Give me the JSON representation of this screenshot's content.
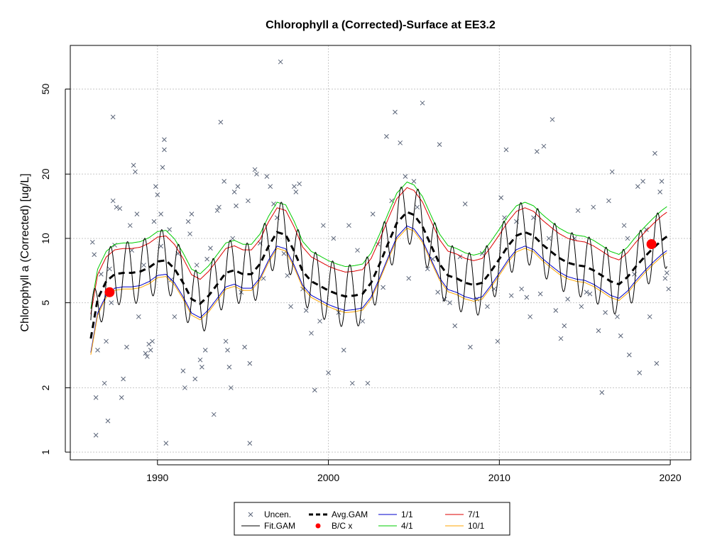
{
  "chart_data": {
    "type": "line",
    "title": "Chlorophyll a (Corrected)-Surface at EE3.2",
    "xlabel": "",
    "ylabel": "Chlorophyll a (Corrected) [ug/L]",
    "ylog": true,
    "xlim": [
      1984.9,
      2021.2
    ],
    "ylim": [
      0.92,
      80
    ],
    "grid": true,
    "x_ticks": [
      1990,
      2000,
      2010,
      2020
    ],
    "y_ticks": [
      1,
      2,
      5,
      10,
      20,
      50
    ],
    "legend_position": "bottom",
    "legend": [
      {
        "label": "Uncen.",
        "kind": "cross",
        "color": "#5a6478"
      },
      {
        "label": "Avg.GAM",
        "kind": "dash",
        "color": "#000000"
      },
      {
        "label": "1/1",
        "kind": "line",
        "color": "#0000cc"
      },
      {
        "label": "7/1",
        "kind": "line",
        "color": "#dd0000"
      },
      {
        "label": "Fit.GAM",
        "kind": "line",
        "color": "#000000"
      },
      {
        "label": "B/C x",
        "kind": "dot",
        "color": "#ff0000"
      },
      {
        "label": "4/1",
        "kind": "line",
        "color": "#00cc00"
      },
      {
        "label": "10/1",
        "kind": "line",
        "color": "#ffa500"
      }
    ],
    "avg_gam": [
      [
        1986.1,
        3.4
      ],
      [
        1986.5,
        5.2
      ],
      [
        1987.0,
        6.3
      ],
      [
        1987.5,
        6.8
      ],
      [
        1988.0,
        6.9
      ],
      [
        1988.5,
        6.9
      ],
      [
        1989.0,
        7.0
      ],
      [
        1989.5,
        7.3
      ],
      [
        1990.0,
        7.8
      ],
      [
        1990.5,
        7.9
      ],
      [
        1991.0,
        7.2
      ],
      [
        1991.5,
        6.2
      ],
      [
        1992.0,
        5.2
      ],
      [
        1992.5,
        4.95
      ],
      [
        1993.0,
        5.4
      ],
      [
        1993.5,
        6.1
      ],
      [
        1994.0,
        6.9
      ],
      [
        1994.5,
        7.1
      ],
      [
        1995.0,
        6.8
      ],
      [
        1995.5,
        6.8
      ],
      [
        1996.0,
        7.6
      ],
      [
        1996.5,
        9.2
      ],
      [
        1997.0,
        10.7
      ],
      [
        1997.5,
        10.4
      ],
      [
        1998.0,
        8.7
      ],
      [
        1998.5,
        7.0
      ],
      [
        1999.0,
        6.3
      ],
      [
        1999.5,
        6.0
      ],
      [
        2000.0,
        5.7
      ],
      [
        2000.5,
        5.5
      ],
      [
        2001.0,
        5.35
      ],
      [
        2001.5,
        5.4
      ],
      [
        2002.0,
        5.5
      ],
      [
        2002.5,
        6.2
      ],
      [
        2003.0,
        7.6
      ],
      [
        2003.5,
        9.5
      ],
      [
        2004.0,
        11.8
      ],
      [
        2004.6,
        13.3
      ],
      [
        2005.0,
        12.9
      ],
      [
        2005.5,
        11.4
      ],
      [
        2006.0,
        9.3
      ],
      [
        2006.5,
        7.6
      ],
      [
        2007.0,
        6.7
      ],
      [
        2007.5,
        6.5
      ],
      [
        2008.0,
        6.2
      ],
      [
        2008.5,
        6.05
      ],
      [
        2009.0,
        6.2
      ],
      [
        2009.5,
        7.0
      ],
      [
        2010.0,
        8.0
      ],
      [
        2010.5,
        9.2
      ],
      [
        2011.0,
        10.3
      ],
      [
        2011.5,
        10.7
      ],
      [
        2012.0,
        10.3
      ],
      [
        2012.5,
        9.4
      ],
      [
        2013.0,
        8.7
      ],
      [
        2013.5,
        8.1
      ],
      [
        2014.0,
        7.7
      ],
      [
        2014.5,
        7.5
      ],
      [
        2015.0,
        7.4
      ],
      [
        2015.5,
        7.1
      ],
      [
        2016.0,
        6.7
      ],
      [
        2016.5,
        6.3
      ],
      [
        2017.0,
        6.1
      ],
      [
        2017.5,
        6.6
      ],
      [
        2018.0,
        7.4
      ],
      [
        2018.5,
        8.2
      ],
      [
        2019.0,
        9.0
      ],
      [
        2019.5,
        9.8
      ],
      [
        2019.8,
        10.2
      ]
    ],
    "curves": [
      {
        "name": "1/1",
        "color": "#0000cc",
        "factor": 0.86
      },
      {
        "name": "4/1",
        "color": "#00cc00",
        "factor": 1.38
      },
      {
        "name": "7/1",
        "color": "#dd0000",
        "factor": 1.3
      },
      {
        "name": "10/1",
        "color": "#ffa500",
        "factor": 0.84
      }
    ],
    "fit_gam_amplitude": 1.4,
    "bc_points": [
      [
        1987.2,
        5.6
      ],
      [
        2018.9,
        9.4
      ]
    ],
    "uncensored_points": [
      [
        1986.2,
        9.6
      ],
      [
        1986.3,
        8.4
      ],
      [
        1986.4,
        1.8
      ],
      [
        1986.4,
        1.2
      ],
      [
        1986.5,
        3.0
      ],
      [
        1986.7,
        6.8
      ],
      [
        1986.9,
        2.1
      ],
      [
        1987.0,
        3.3
      ],
      [
        1987.1,
        1.4
      ],
      [
        1987.2,
        7.2
      ],
      [
        1987.3,
        5.0
      ],
      [
        1987.4,
        37.0
      ],
      [
        1987.4,
        15.0
      ],
      [
        1987.5,
        9.3
      ],
      [
        1987.6,
        14.0
      ],
      [
        1987.8,
        13.8
      ],
      [
        1987.9,
        1.8
      ],
      [
        1988.0,
        2.2
      ],
      [
        1988.2,
        3.1
      ],
      [
        1988.4,
        11.5
      ],
      [
        1988.5,
        8.8
      ],
      [
        1988.6,
        22.0
      ],
      [
        1988.7,
        20.5
      ],
      [
        1988.8,
        13.0
      ],
      [
        1988.9,
        4.3
      ],
      [
        1989.2,
        7.5
      ],
      [
        1989.3,
        2.9
      ],
      [
        1989.4,
        2.8
      ],
      [
        1989.5,
        3.2
      ],
      [
        1989.6,
        3.0
      ],
      [
        1989.7,
        3.3
      ],
      [
        1989.8,
        12.0
      ],
      [
        1989.9,
        17.5
      ],
      [
        1990.0,
        16.0
      ],
      [
        1990.2,
        13.0
      ],
      [
        1990.2,
        9.2
      ],
      [
        1990.3,
        21.5
      ],
      [
        1990.4,
        26.0
      ],
      [
        1990.4,
        29.0
      ],
      [
        1990.5,
        1.1
      ],
      [
        1990.7,
        11.0
      ],
      [
        1990.8,
        6.4
      ],
      [
        1991.0,
        4.3
      ],
      [
        1991.2,
        8.5
      ],
      [
        1991.5,
        2.4
      ],
      [
        1991.6,
        2.0
      ],
      [
        1991.8,
        12.0
      ],
      [
        1991.9,
        10.5
      ],
      [
        1992.0,
        13.0
      ],
      [
        1992.2,
        2.2
      ],
      [
        1992.3,
        7.5
      ],
      [
        1992.5,
        2.7
      ],
      [
        1992.6,
        2.5
      ],
      [
        1992.8,
        3.0
      ],
      [
        1992.9,
        8.0
      ],
      [
        1993.1,
        9.0
      ],
      [
        1993.3,
        1.5
      ],
      [
        1993.5,
        13.5
      ],
      [
        1993.6,
        14.0
      ],
      [
        1993.7,
        35.0
      ],
      [
        1993.9,
        18.5
      ],
      [
        1994.0,
        3.3
      ],
      [
        1994.1,
        3.0
      ],
      [
        1994.2,
        2.5
      ],
      [
        1994.3,
        2.0
      ],
      [
        1994.4,
        10.0
      ],
      [
        1994.5,
        16.5
      ],
      [
        1994.6,
        14.2
      ],
      [
        1994.7,
        17.5
      ],
      [
        1994.9,
        5.6
      ],
      [
        1995.1,
        3.1
      ],
      [
        1995.3,
        15.0
      ],
      [
        1995.4,
        2.6
      ],
      [
        1995.4,
        1.1
      ],
      [
        1995.7,
        21.0
      ],
      [
        1995.8,
        20.0
      ],
      [
        1996.0,
        9.5
      ],
      [
        1996.2,
        6.5
      ],
      [
        1996.4,
        19.5
      ],
      [
        1996.6,
        17.5
      ],
      [
        1996.8,
        14.5
      ],
      [
        1997.0,
        12.5
      ],
      [
        1997.2,
        67.0
      ],
      [
        1997.4,
        8.5
      ],
      [
        1997.6,
        6.7
      ],
      [
        1997.8,
        4.8
      ],
      [
        1998.0,
        17.5
      ],
      [
        1998.1,
        16.5
      ],
      [
        1998.3,
        18.0
      ],
      [
        1998.5,
        5.8
      ],
      [
        1998.7,
        4.6
      ],
      [
        1999.0,
        3.6
      ],
      [
        1999.2,
        1.95
      ],
      [
        1999.5,
        4.1
      ],
      [
        1999.7,
        11.5
      ],
      [
        2000.0,
        2.35
      ],
      [
        2000.3,
        10.0
      ],
      [
        2000.6,
        4.5
      ],
      [
        2000.9,
        3.0
      ],
      [
        2001.2,
        11.5
      ],
      [
        2001.4,
        2.1
      ],
      [
        2001.7,
        8.8
      ],
      [
        2002.0,
        4.1
      ],
      [
        2002.3,
        2.1
      ],
      [
        2002.6,
        13.0
      ],
      [
        2002.9,
        9.4
      ],
      [
        2003.2,
        5.9
      ],
      [
        2003.4,
        30.0
      ],
      [
        2003.7,
        15.0
      ],
      [
        2003.9,
        39.0
      ],
      [
        2004.2,
        28.0
      ],
      [
        2004.5,
        19.5
      ],
      [
        2004.7,
        6.5
      ],
      [
        2005.0,
        18.5
      ],
      [
        2005.2,
        14.0
      ],
      [
        2005.5,
        43.0
      ],
      [
        2005.8,
        7.2
      ],
      [
        2006.1,
        8.0
      ],
      [
        2006.4,
        5.6
      ],
      [
        2006.5,
        27.5
      ],
      [
        2006.8,
        5.2
      ],
      [
        2007.1,
        5.0
      ],
      [
        2007.4,
        3.9
      ],
      [
        2007.7,
        8.2
      ],
      [
        2008.0,
        14.5
      ],
      [
        2008.3,
        3.1
      ],
      [
        2008.7,
        5.2
      ],
      [
        2009.0,
        8.5
      ],
      [
        2009.3,
        4.8
      ],
      [
        2009.7,
        5.8
      ],
      [
        2009.9,
        3.3
      ],
      [
        2010.1,
        15.5
      ],
      [
        2010.3,
        12.5
      ],
      [
        2010.4,
        26.0
      ],
      [
        2010.7,
        5.4
      ],
      [
        2011.0,
        12.0
      ],
      [
        2011.3,
        5.8
      ],
      [
        2011.6,
        5.3
      ],
      [
        2011.8,
        4.3
      ],
      [
        2012.0,
        12.5
      ],
      [
        2012.2,
        25.5
      ],
      [
        2012.4,
        5.5
      ],
      [
        2012.6,
        27.0
      ],
      [
        2012.9,
        10.0
      ],
      [
        2013.1,
        36.0
      ],
      [
        2013.3,
        4.6
      ],
      [
        2013.6,
        3.4
      ],
      [
        2013.8,
        3.9
      ],
      [
        2014.0,
        5.2
      ],
      [
        2014.4,
        10.0
      ],
      [
        2014.6,
        13.5
      ],
      [
        2014.8,
        4.8
      ],
      [
        2015.1,
        5.6
      ],
      [
        2015.3,
        5.5
      ],
      [
        2015.5,
        14.0
      ],
      [
        2015.8,
        3.7
      ],
      [
        2016.0,
        1.9
      ],
      [
        2016.2,
        4.5
      ],
      [
        2016.4,
        15.0
      ],
      [
        2016.6,
        20.5
      ],
      [
        2016.9,
        4.3
      ],
      [
        2017.1,
        3.5
      ],
      [
        2017.3,
        11.5
      ],
      [
        2017.5,
        10.0
      ],
      [
        2017.6,
        2.85
      ],
      [
        2017.9,
        6.8
      ],
      [
        2018.1,
        17.5
      ],
      [
        2018.2,
        2.35
      ],
      [
        2018.4,
        18.5
      ],
      [
        2018.6,
        11.0
      ],
      [
        2018.8,
        4.3
      ],
      [
        2019.1,
        25.0
      ],
      [
        2019.2,
        2.6
      ],
      [
        2019.4,
        16.5
      ],
      [
        2019.5,
        18.5
      ],
      [
        2019.7,
        6.5
      ],
      [
        2019.8,
        6.9
      ],
      [
        2019.9,
        5.8
      ]
    ]
  }
}
